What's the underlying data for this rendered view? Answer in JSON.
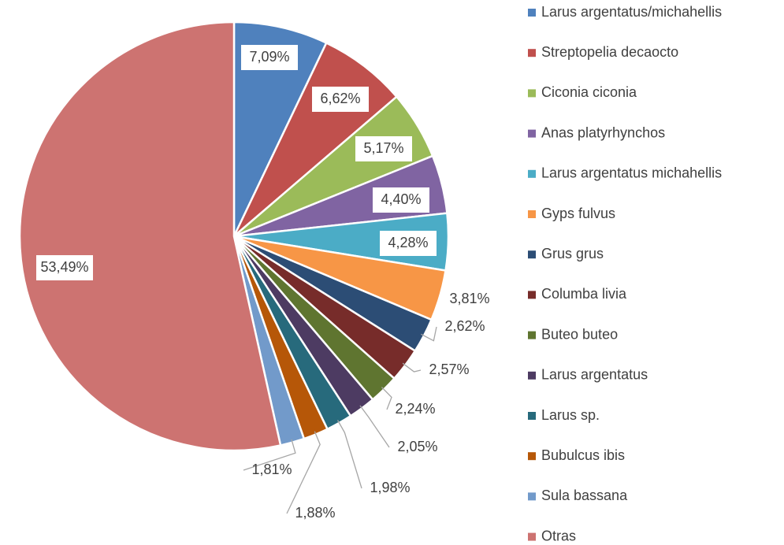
{
  "chart_data": {
    "type": "pie",
    "categories": [
      "Larus argentatus/michahellis",
      "Streptopelia decaocto",
      "Ciconia ciconia",
      "Anas platyrhynchos",
      "Larus argentatus michahellis",
      "Gyps fulvus",
      "Grus grus",
      "Columba livia",
      "Buteo buteo",
      "Larus argentatus",
      "Larus sp.",
      "Bubulcus ibis",
      "Sula bassana",
      "Otras"
    ],
    "values": [
      7.09,
      6.62,
      5.17,
      4.4,
      4.28,
      3.81,
      2.62,
      2.57,
      2.24,
      2.05,
      1.98,
      1.88,
      1.81,
      53.49
    ],
    "value_labels": [
      "7,09%",
      "6,62%",
      "5,17%",
      "4,40%",
      "4,28%",
      "3,81%",
      "2,62%",
      "2,57%",
      "2,24%",
      "2,05%",
      "1,98%",
      "1,88%",
      "1,81%",
      "53,49%"
    ],
    "colors": [
      "#4f81bd",
      "#c0504d",
      "#9bbb59",
      "#8064a2",
      "#4bacc6",
      "#f79646",
      "#2c4d75",
      "#772c2a",
      "#5f7530",
      "#4d3b62",
      "#276a7c",
      "#b65708",
      "#729aca",
      "#cd7371"
    ],
    "legend": "right"
  }
}
